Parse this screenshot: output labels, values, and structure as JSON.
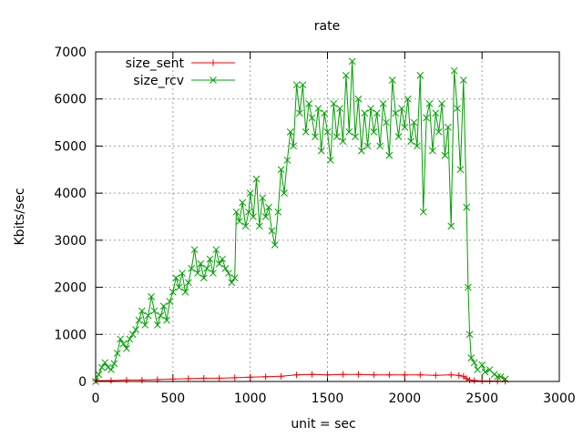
{
  "chart_data": {
    "type": "line",
    "title": "rate",
    "xlabel": "unit = sec",
    "ylabel": "Kbits/sec",
    "xlim": [
      0,
      3000
    ],
    "ylim": [
      0,
      7000
    ],
    "xticks": [
      0,
      500,
      1000,
      1500,
      2000,
      2500,
      3000
    ],
    "yticks": [
      0,
      1000,
      2000,
      3000,
      4000,
      5000,
      6000,
      7000
    ],
    "grid": true,
    "legend_position": "top-left",
    "series": [
      {
        "name": "size_sent",
        "color": "#ff0000",
        "marker": "plus",
        "points": [
          [
            0,
            20
          ],
          [
            100,
            20
          ],
          [
            200,
            30
          ],
          [
            300,
            30
          ],
          [
            400,
            40
          ],
          [
            500,
            50
          ],
          [
            600,
            60
          ],
          [
            700,
            70
          ],
          [
            800,
            70
          ],
          [
            900,
            80
          ],
          [
            1000,
            90
          ],
          [
            1100,
            100
          ],
          [
            1200,
            110
          ],
          [
            1300,
            140
          ],
          [
            1400,
            150
          ],
          [
            1500,
            140
          ],
          [
            1600,
            150
          ],
          [
            1700,
            150
          ],
          [
            1800,
            140
          ],
          [
            1900,
            140
          ],
          [
            2000,
            140
          ],
          [
            2100,
            140
          ],
          [
            2200,
            130
          ],
          [
            2300,
            140
          ],
          [
            2350,
            130
          ],
          [
            2380,
            110
          ],
          [
            2400,
            60
          ],
          [
            2420,
            30
          ],
          [
            2450,
            20
          ],
          [
            2500,
            10
          ],
          [
            2550,
            10
          ],
          [
            2600,
            5
          ],
          [
            2650,
            5
          ]
        ]
      },
      {
        "name": "size_rcv",
        "color": "#00a000",
        "marker": "cross",
        "points": [
          [
            0,
            0
          ],
          [
            20,
            150
          ],
          [
            40,
            300
          ],
          [
            60,
            400
          ],
          [
            80,
            300
          ],
          [
            100,
            250
          ],
          [
            120,
            380
          ],
          [
            140,
            600
          ],
          [
            160,
            900
          ],
          [
            180,
            800
          ],
          [
            200,
            700
          ],
          [
            220,
            900
          ],
          [
            240,
            1000
          ],
          [
            260,
            1100
          ],
          [
            280,
            1300
          ],
          [
            300,
            1500
          ],
          [
            320,
            1200
          ],
          [
            340,
            1400
          ],
          [
            360,
            1800
          ],
          [
            380,
            1500
          ],
          [
            400,
            1200
          ],
          [
            420,
            1400
          ],
          [
            440,
            1600
          ],
          [
            460,
            1300
          ],
          [
            480,
            1700
          ],
          [
            500,
            1900
          ],
          [
            520,
            2200
          ],
          [
            540,
            2000
          ],
          [
            560,
            2300
          ],
          [
            580,
            1900
          ],
          [
            600,
            2100
          ],
          [
            620,
            2400
          ],
          [
            640,
            2800
          ],
          [
            660,
            2300
          ],
          [
            680,
            2500
          ],
          [
            700,
            2200
          ],
          [
            720,
            2400
          ],
          [
            740,
            2600
          ],
          [
            760,
            2300
          ],
          [
            780,
            2800
          ],
          [
            800,
            2500
          ],
          [
            820,
            2600
          ],
          [
            840,
            2400
          ],
          [
            860,
            2300
          ],
          [
            880,
            2100
          ],
          [
            900,
            2200
          ],
          [
            910,
            3600
          ],
          [
            930,
            3400
          ],
          [
            950,
            3800
          ],
          [
            970,
            3300
          ],
          [
            990,
            3600
          ],
          [
            1000,
            4000
          ],
          [
            1020,
            3500
          ],
          [
            1040,
            4300
          ],
          [
            1060,
            3300
          ],
          [
            1080,
            3900
          ],
          [
            1100,
            3500
          ],
          [
            1120,
            3700
          ],
          [
            1140,
            3200
          ],
          [
            1160,
            2900
          ],
          [
            1180,
            3600
          ],
          [
            1200,
            4500
          ],
          [
            1220,
            4000
          ],
          [
            1240,
            4700
          ],
          [
            1260,
            5300
          ],
          [
            1280,
            5000
          ],
          [
            1300,
            6300
          ],
          [
            1320,
            5700
          ],
          [
            1340,
            6300
          ],
          [
            1360,
            5300
          ],
          [
            1380,
            5900
          ],
          [
            1400,
            5600
          ],
          [
            1420,
            5200
          ],
          [
            1440,
            5800
          ],
          [
            1460,
            4900
          ],
          [
            1480,
            5700
          ],
          [
            1500,
            5300
          ],
          [
            1520,
            4700
          ],
          [
            1540,
            5900
          ],
          [
            1560,
            5200
          ],
          [
            1580,
            5800
          ],
          [
            1600,
            5100
          ],
          [
            1620,
            6500
          ],
          [
            1640,
            5300
          ],
          [
            1660,
            6800
          ],
          [
            1680,
            5200
          ],
          [
            1700,
            6000
          ],
          [
            1720,
            4900
          ],
          [
            1740,
            5700
          ],
          [
            1760,
            5000
          ],
          [
            1780,
            5800
          ],
          [
            1800,
            5300
          ],
          [
            1820,
            5700
          ],
          [
            1840,
            5000
          ],
          [
            1860,
            5900
          ],
          [
            1880,
            5500
          ],
          [
            1900,
            4800
          ],
          [
            1920,
            6400
          ],
          [
            1940,
            5700
          ],
          [
            1960,
            5200
          ],
          [
            1980,
            5800
          ],
          [
            2000,
            5400
          ],
          [
            2020,
            6000
          ],
          [
            2040,
            5100
          ],
          [
            2060,
            5500
          ],
          [
            2080,
            5000
          ],
          [
            2100,
            6500
          ],
          [
            2120,
            3600
          ],
          [
            2140,
            5600
          ],
          [
            2160,
            5900
          ],
          [
            2180,
            4900
          ],
          [
            2200,
            5700
          ],
          [
            2220,
            5300
          ],
          [
            2240,
            5900
          ],
          [
            2260,
            4800
          ],
          [
            2280,
            5400
          ],
          [
            2300,
            3300
          ],
          [
            2320,
            6600
          ],
          [
            2340,
            5800
          ],
          [
            2360,
            4500
          ],
          [
            2380,
            6400
          ],
          [
            2400,
            3700
          ],
          [
            2410,
            2000
          ],
          [
            2420,
            1000
          ],
          [
            2430,
            500
          ],
          [
            2450,
            400
          ],
          [
            2470,
            250
          ],
          [
            2500,
            350
          ],
          [
            2520,
            200
          ],
          [
            2550,
            250
          ],
          [
            2580,
            150
          ],
          [
            2600,
            100
          ],
          [
            2620,
            100
          ],
          [
            2650,
            50
          ]
        ]
      }
    ]
  }
}
